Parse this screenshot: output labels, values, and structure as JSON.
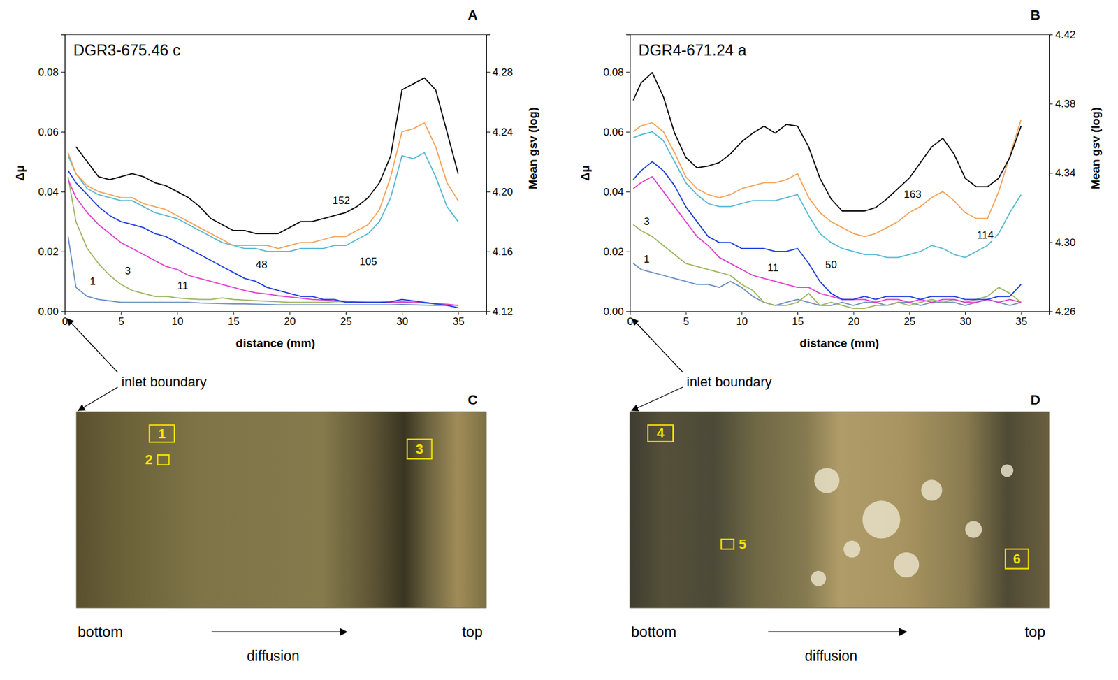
{
  "chart_data": [
    {
      "type": "line",
      "panel": "A",
      "title": "DGR3-675.46 c",
      "x_label": "distance (mm)",
      "y_label": "Δμ",
      "y2_label": "Mean gsv (log)",
      "annotations": [
        "inlet boundary"
      ],
      "x": [
        0.3,
        1,
        2,
        3,
        4,
        5,
        6,
        7,
        8,
        9,
        10,
        11,
        12,
        13,
        14,
        15,
        16,
        17,
        18,
        19,
        20,
        21,
        22,
        23,
        24,
        25,
        26,
        27,
        28,
        29,
        30,
        31,
        32,
        33,
        34,
        35
      ],
      "xlim": [
        0,
        37.5
      ],
      "xticks": [
        0,
        5,
        10,
        15,
        20,
        25,
        30,
        35
      ],
      "ylim": [
        0,
        0.0925
      ],
      "yticks": [
        {
          "value": 0,
          "label": "0.00"
        },
        0.02,
        0.04,
        0.06,
        0.08
      ],
      "y2lim": [
        4.12,
        4.305
      ],
      "y2ticks": [
        4.12,
        4.16,
        {
          "value": 4.2,
          "label": "4.20"
        },
        4.24,
        4.28
      ],
      "series": [
        {
          "name": "1",
          "color": "#6b8fbf",
          "values": [
            0.025,
            0.008,
            0.005,
            0.004,
            0.0035,
            0.003,
            0.003,
            0.003,
            0.003,
            0.003,
            0.003,
            0.003,
            0.0028,
            0.0027,
            0.0026,
            0.0025,
            0.0025,
            0.0024,
            0.0023,
            0.0022,
            0.0022,
            0.0022,
            0.0022,
            0.0022,
            0.0022,
            0.0022,
            0.0022,
            0.0022,
            0.0022,
            0.0022,
            0.0023,
            0.0022,
            0.0021,
            0.002,
            0.002,
            0.002
          ]
        },
        {
          "name": "3",
          "color": "#9cb560",
          "values": [
            0.045,
            0.03,
            0.021,
            0.016,
            0.012,
            0.009,
            0.007,
            0.006,
            0.005,
            0.005,
            0.0045,
            0.0042,
            0.004,
            0.004,
            0.0045,
            0.004,
            0.0038,
            0.0036,
            0.0034,
            0.0032,
            0.003,
            0.003,
            0.003,
            0.003,
            0.0032,
            0.0033,
            0.003,
            0.003,
            0.003,
            0.003,
            0.0033,
            0.003,
            0.0028,
            0.0025,
            0.0022,
            0.002
          ]
        },
        {
          "name": "11",
          "color": "#e33fd0",
          "values": [
            0.044,
            0.038,
            0.033,
            0.029,
            0.026,
            0.023,
            0.021,
            0.019,
            0.017,
            0.015,
            0.014,
            0.012,
            0.011,
            0.01,
            0.009,
            0.008,
            0.007,
            0.0062,
            0.0058,
            0.0052,
            0.0048,
            0.0044,
            0.004,
            0.0038,
            0.0036,
            0.0034,
            0.0032,
            0.003,
            0.003,
            0.003,
            0.003,
            0.003,
            0.0028,
            0.0026,
            0.0024,
            0.002
          ]
        },
        {
          "name": "48",
          "color": "#1f3fe0",
          "values": [
            0.047,
            0.043,
            0.039,
            0.035,
            0.032,
            0.03,
            0.029,
            0.028,
            0.026,
            0.025,
            0.023,
            0.021,
            0.019,
            0.017,
            0.015,
            0.013,
            0.011,
            0.01,
            0.008,
            0.007,
            0.006,
            0.005,
            0.005,
            0.004,
            0.004,
            0.003,
            0.003,
            0.003,
            0.003,
            0.0032,
            0.004,
            0.0035,
            0.003,
            0.0025,
            0.002,
            0.0012
          ]
        },
        {
          "name": "105",
          "color": "#55b9d3",
          "values": [
            0.052,
            0.046,
            0.041,
            0.039,
            0.038,
            0.037,
            0.037,
            0.035,
            0.033,
            0.032,
            0.031,
            0.029,
            0.027,
            0.025,
            0.023,
            0.022,
            0.021,
            0.021,
            0.02,
            0.02,
            0.02,
            0.021,
            0.021,
            0.021,
            0.022,
            0.022,
            0.024,
            0.026,
            0.03,
            0.038,
            0.052,
            0.051,
            0.053,
            0.045,
            0.035,
            0.03
          ]
        },
        {
          "name": "152",
          "color": "#f3a257",
          "values": [
            0.053,
            0.046,
            0.042,
            0.04,
            0.039,
            0.038,
            0.038,
            0.036,
            0.035,
            0.034,
            0.032,
            0.03,
            0.028,
            0.026,
            0.024,
            0.022,
            0.022,
            0.022,
            0.022,
            0.021,
            0.022,
            0.023,
            0.023,
            0.024,
            0.025,
            0.025,
            0.027,
            0.029,
            0.034,
            0.045,
            0.06,
            0.061,
            0.063,
            0.055,
            0.043,
            0.037
          ]
        },
        {
          "color": "#000000",
          "axis": "y2",
          "values": [
            null,
            4.23,
            4.22,
            4.21,
            4.208,
            4.21,
            4.212,
            4.21,
            4.206,
            4.204,
            4.2,
            4.196,
            4.19,
            4.182,
            4.178,
            4.174,
            4.174,
            4.172,
            4.172,
            4.172,
            4.176,
            4.18,
            4.18,
            4.182,
            4.184,
            4.186,
            4.19,
            4.196,
            4.206,
            4.224,
            4.268,
            4.272,
            4.276,
            4.268,
            4.24,
            4.212
          ]
        }
      ]
    },
    {
      "type": "line",
      "panel": "B",
      "title": "DGR4-671.24 a",
      "x_label": "distance (mm)",
      "y_label": "Δμ",
      "y2_label": "Mean gsv (log)",
      "annotations": [
        "inlet boundary"
      ],
      "x": [
        0.3,
        1,
        2,
        3,
        4,
        5,
        6,
        7,
        8,
        9,
        10,
        11,
        12,
        13,
        14,
        15,
        16,
        17,
        18,
        19,
        20,
        21,
        22,
        23,
        24,
        25,
        26,
        27,
        28,
        29,
        30,
        31,
        32,
        33,
        34,
        35
      ],
      "xlim": [
        0,
        37.5
      ],
      "xticks": [
        0,
        5,
        10,
        15,
        20,
        25,
        30,
        35
      ],
      "ylim": [
        0,
        0.0925
      ],
      "yticks": [
        {
          "value": 0,
          "label": "0.00"
        },
        0.02,
        0.04,
        0.06,
        0.08
      ],
      "y2lim": [
        4.26,
        4.42
      ],
      "y2ticks": [
        4.26,
        {
          "value": 4.3,
          "label": "4.30"
        },
        4.34,
        4.38,
        4.42
      ],
      "series": [
        {
          "name": "1",
          "color": "#6b8fbf",
          "values": [
            0.016,
            0.014,
            0.013,
            0.012,
            0.011,
            0.01,
            0.009,
            0.009,
            0.008,
            0.01,
            0.008,
            0.005,
            0.003,
            0.002,
            0.003,
            0.004,
            0.003,
            0.002,
            0.002,
            0.003,
            0.002,
            0.003,
            0.003,
            0.002,
            0.003,
            0.003,
            0.002,
            0.003,
            0.003,
            0.003,
            0.002,
            0.003,
            0.004,
            0.003,
            0.002,
            0.003
          ]
        },
        {
          "name": "3",
          "color": "#9cb560",
          "values": [
            0.029,
            0.027,
            0.025,
            0.022,
            0.019,
            0.016,
            0.015,
            0.014,
            0.013,
            0.012,
            0.009,
            0.007,
            0.003,
            0.002,
            0.002,
            0.003,
            0.006,
            0.002,
            0.003,
            0.002,
            0.001,
            0.001,
            0.002,
            0.002,
            0.003,
            0.002,
            0.003,
            0.004,
            0.003,
            0.004,
            0.003,
            0.004,
            0.005,
            0.008,
            0.006,
            0.003
          ]
        },
        {
          "name": "11",
          "color": "#e33fd0",
          "values": [
            0.041,
            0.043,
            0.045,
            0.04,
            0.035,
            0.03,
            0.025,
            0.022,
            0.018,
            0.016,
            0.014,
            0.012,
            0.011,
            0.01,
            0.009,
            0.008,
            0.008,
            0.006,
            0.005,
            0.004,
            0.004,
            0.004,
            0.003,
            0.004,
            0.004,
            0.003,
            0.004,
            0.003,
            0.004,
            0.004,
            0.003,
            0.003,
            0.004,
            0.003,
            0.004,
            0.003
          ]
        },
        {
          "name": "50",
          "color": "#1f3fe0",
          "values": [
            0.044,
            0.047,
            0.05,
            0.047,
            0.042,
            0.035,
            0.03,
            0.025,
            0.023,
            0.023,
            0.021,
            0.021,
            0.021,
            0.02,
            0.02,
            0.021,
            0.016,
            0.01,
            0.006,
            0.004,
            0.004,
            0.005,
            0.004,
            0.005,
            0.005,
            0.005,
            0.004,
            0.005,
            0.005,
            0.005,
            0.004,
            0.004,
            0.004,
            0.005,
            0.005,
            0.009
          ]
        },
        {
          "name": "114",
          "color": "#55b9d3",
          "values": [
            0.058,
            0.059,
            0.06,
            0.057,
            0.05,
            0.043,
            0.039,
            0.036,
            0.035,
            0.035,
            0.036,
            0.037,
            0.037,
            0.037,
            0.038,
            0.039,
            0.032,
            0.026,
            0.023,
            0.021,
            0.02,
            0.019,
            0.019,
            0.018,
            0.018,
            0.019,
            0.02,
            0.022,
            0.021,
            0.019,
            0.018,
            0.02,
            0.022,
            0.026,
            0.033,
            0.039
          ]
        },
        {
          "name": "163",
          "color": "#f3a257",
          "values": [
            0.06,
            0.062,
            0.063,
            0.06,
            0.053,
            0.045,
            0.041,
            0.039,
            0.038,
            0.039,
            0.041,
            0.042,
            0.043,
            0.043,
            0.044,
            0.046,
            0.038,
            0.033,
            0.03,
            0.028,
            0.026,
            0.025,
            0.026,
            0.028,
            0.03,
            0.033,
            0.035,
            0.038,
            0.04,
            0.037,
            0.033,
            0.031,
            0.031,
            0.04,
            0.052,
            0.064
          ]
        },
        {
          "color": "#000000",
          "axis": "y2",
          "values": [
            4.382,
            4.392,
            4.398,
            4.384,
            4.363,
            4.349,
            4.343,
            4.344,
            4.346,
            4.351,
            4.358,
            4.363,
            4.367,
            4.363,
            4.368,
            4.367,
            4.355,
            4.337,
            4.325,
            4.318,
            4.318,
            4.318,
            4.32,
            4.325,
            4.331,
            4.337,
            4.346,
            4.355,
            4.36,
            4.351,
            4.337,
            4.332,
            4.332,
            4.337,
            4.349,
            4.367
          ]
        }
      ]
    }
  ],
  "images": [
    {
      "panel": "C",
      "boxes": [
        "1",
        "2",
        "3"
      ],
      "left_label": "bottom",
      "right_label": "top",
      "arrow_label": "diffusion"
    },
    {
      "panel": "D",
      "boxes": [
        "4",
        "5",
        "6"
      ],
      "left_label": "bottom",
      "right_label": "top",
      "arrow_label": "diffusion"
    }
  ]
}
